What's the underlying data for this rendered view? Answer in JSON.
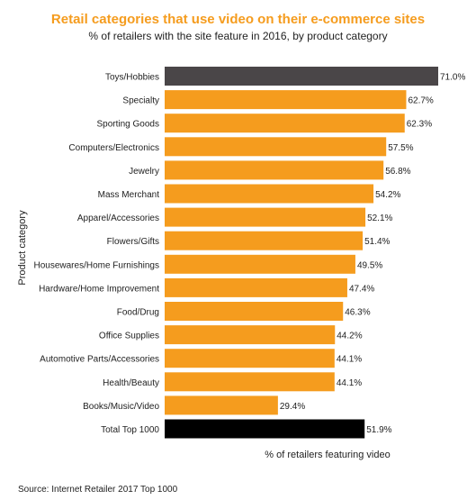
{
  "title": "Retail categories that use video on their e-commerce sites",
  "subtitle": "% of retailers with the site feature in 2016, by product category",
  "source": "Source: Internet Retailer 2017 Top 1000",
  "colors": {
    "title": "#f59c1e",
    "bar": "#f59c1e",
    "highlight": "#4a4648",
    "total": "#000000"
  },
  "chart_data": {
    "type": "bar",
    "orientation": "horizontal",
    "xlabel": "% of retailers featuring video",
    "ylabel": "Product category",
    "xlim": [
      0,
      71
    ],
    "grid": false,
    "categories": [
      "Toys/Hobbies",
      "Specialty",
      "Sporting Goods",
      "Computers/Electronics",
      "Jewelry",
      "Mass Merchant",
      "Apparel/Accessories",
      "Flowers/Gifts",
      "Housewares/Home Furnishings",
      "Hardware/Home Improvement",
      "Food/Drug",
      "Office Supplies",
      "Automotive Parts/Accessories",
      "Health/Beauty",
      "Books/Music/Video",
      "Total Top 1000"
    ],
    "values": [
      71.0,
      62.7,
      62.3,
      57.5,
      56.8,
      54.2,
      52.1,
      51.4,
      49.5,
      47.4,
      46.3,
      44.2,
      44.1,
      44.1,
      29.4,
      51.9
    ],
    "value_labels": [
      "71.0%",
      "62.7%",
      "62.3%",
      "57.5%",
      "56.8%",
      "54.2%",
      "52.1%",
      "51.4%",
      "49.5%",
      "47.4%",
      "46.3%",
      "44.2%",
      "44.1%",
      "44.1%",
      "29.4%",
      "51.9%"
    ],
    "bar_colors": [
      "#4a4648",
      "#f59c1e",
      "#f59c1e",
      "#f59c1e",
      "#f59c1e",
      "#f59c1e",
      "#f59c1e",
      "#f59c1e",
      "#f59c1e",
      "#f59c1e",
      "#f59c1e",
      "#f59c1e",
      "#f59c1e",
      "#f59c1e",
      "#f59c1e",
      "#000000"
    ]
  }
}
